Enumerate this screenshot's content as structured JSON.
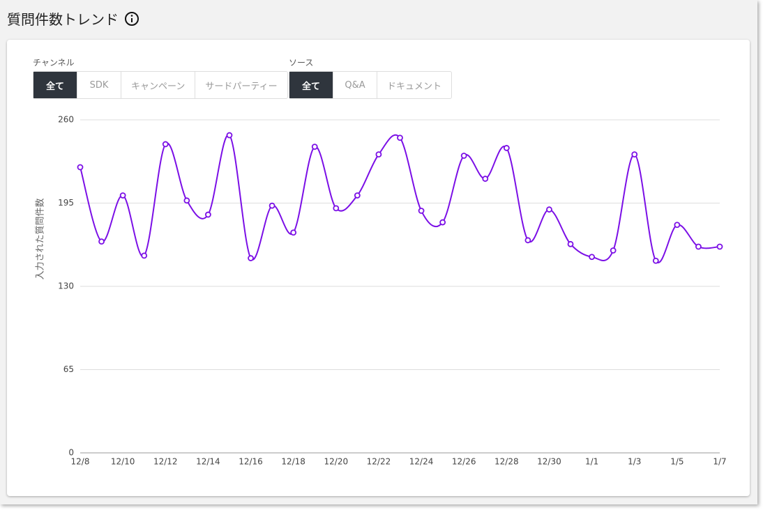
{
  "header": {
    "title": "質問件数トレンド"
  },
  "filters": [
    {
      "label": "チャンネル",
      "options": [
        "全て",
        "SDK",
        "キャンペーン",
        "サードパーティー"
      ],
      "active": 0
    },
    {
      "label": "ソース",
      "options": [
        "全て",
        "Q&A",
        "ドキュメント"
      ],
      "active": 0
    }
  ],
  "chart_data": {
    "type": "line",
    "y_label": "入力された質問件数",
    "categories": [
      "12/8",
      null,
      "12/10",
      null,
      "12/12",
      null,
      "12/14",
      null,
      "12/16",
      null,
      "12/18",
      null,
      "12/20",
      null,
      "12/22",
      null,
      "12/24",
      null,
      "12/26",
      null,
      "12/28",
      null,
      "12/30",
      null,
      "1/1",
      null,
      "1/3",
      null,
      "1/5",
      null,
      "1/7"
    ],
    "values": [
      223,
      165,
      201,
      154,
      241,
      197,
      186,
      248,
      152,
      193,
      172,
      239,
      191,
      201,
      233,
      246,
      189,
      180,
      232,
      214,
      238,
      166,
      190,
      163,
      153,
      158,
      233,
      150,
      178,
      161,
      161
    ],
    "color": "#7b0fe6",
    "ylim": [
      0,
      260
    ],
    "yticks": [
      0,
      65,
      130,
      195,
      260
    ],
    "grid": true,
    "smooth": true
  }
}
